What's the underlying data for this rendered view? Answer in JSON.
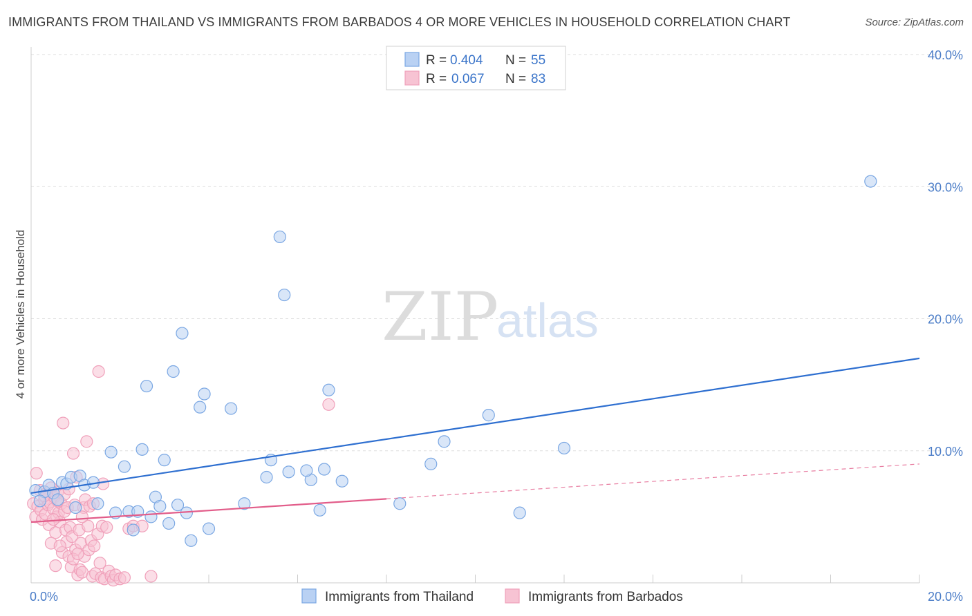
{
  "title": "IMMIGRANTS FROM THAILAND VS IMMIGRANTS FROM BARBADOS 4 OR MORE VEHICLES IN HOUSEHOLD CORRELATION CHART",
  "source": "Source: ZipAtlas.com",
  "watermark": {
    "part1": "ZIP",
    "part2": "atlas"
  },
  "chart_data": {
    "type": "scatter",
    "xlabel": "",
    "ylabel": "4 or more Vehicles in Household",
    "xlim": [
      0,
      20
    ],
    "ylim": [
      0,
      40
    ],
    "x_tick_labels": [
      {
        "value": 0,
        "label": "0.0%"
      },
      {
        "value": 20,
        "label": "20.0%"
      }
    ],
    "y_tick_labels": [
      {
        "value": 10,
        "label": "10.0%"
      },
      {
        "value": 20,
        "label": "20.0%"
      },
      {
        "value": 30,
        "label": "30.0%"
      },
      {
        "value": 40,
        "label": "40.0%"
      }
    ],
    "stats": [
      {
        "r_label": "R =",
        "r": "0.404",
        "n_label": "N =",
        "n": "55"
      },
      {
        "r_label": "R =",
        "r": "0.067",
        "n_label": "N =",
        "n": "83"
      }
    ],
    "series": [
      {
        "name": "Immigrants from Thailand",
        "color": "#7aa7e3",
        "fill": "#b9d1f3",
        "line_color": "#2e6fd0",
        "trend": {
          "x0": 0,
          "y0": 6.8,
          "x1": 20,
          "y1": 17.0,
          "dashed_from": null
        },
        "points": [
          [
            0.1,
            7.0
          ],
          [
            0.3,
            6.9
          ],
          [
            0.4,
            7.4
          ],
          [
            0.5,
            6.8
          ],
          [
            0.7,
            7.6
          ],
          [
            0.8,
            7.5
          ],
          [
            0.9,
            8.0
          ],
          [
            1.1,
            8.1
          ],
          [
            1.0,
            5.7
          ],
          [
            1.2,
            7.4
          ],
          [
            1.4,
            7.6
          ],
          [
            1.5,
            6.0
          ],
          [
            1.8,
            9.9
          ],
          [
            1.9,
            5.3
          ],
          [
            2.1,
            8.8
          ],
          [
            2.2,
            5.4
          ],
          [
            2.3,
            4.0
          ],
          [
            2.4,
            5.4
          ],
          [
            2.5,
            10.1
          ],
          [
            2.6,
            14.9
          ],
          [
            2.7,
            5.0
          ],
          [
            2.8,
            6.5
          ],
          [
            2.9,
            5.8
          ],
          [
            3.0,
            9.3
          ],
          [
            3.1,
            4.5
          ],
          [
            3.2,
            16.0
          ],
          [
            3.3,
            5.9
          ],
          [
            3.4,
            18.9
          ],
          [
            3.5,
            5.3
          ],
          [
            3.6,
            3.2
          ],
          [
            3.8,
            13.3
          ],
          [
            3.9,
            14.3
          ],
          [
            4.0,
            4.1
          ],
          [
            4.5,
            13.2
          ],
          [
            4.8,
            6.0
          ],
          [
            5.4,
            9.3
          ],
          [
            5.6,
            26.2
          ],
          [
            5.7,
            21.8
          ],
          [
            5.3,
            8.0
          ],
          [
            5.8,
            8.4
          ],
          [
            6.3,
            7.8
          ],
          [
            6.2,
            8.5
          ],
          [
            6.5,
            5.5
          ],
          [
            6.6,
            8.6
          ],
          [
            6.7,
            14.6
          ],
          [
            7.0,
            7.7
          ],
          [
            8.3,
            6.0
          ],
          [
            9.0,
            9.0
          ],
          [
            9.3,
            10.7
          ],
          [
            10.3,
            12.7
          ],
          [
            11.0,
            5.3
          ],
          [
            12.0,
            10.2
          ],
          [
            18.9,
            30.4
          ],
          [
            0.2,
            6.2
          ],
          [
            0.6,
            6.3
          ]
        ]
      },
      {
        "name": "Immigrants from Barbados",
        "color": "#f0a0ba",
        "fill": "#f7c3d3",
        "line_color": "#e25d8a",
        "trend": {
          "x0": 0,
          "y0": 4.6,
          "x1": 20,
          "y1": 9.0,
          "dashed_from": 8.0
        },
        "points": [
          [
            0.05,
            6.0
          ],
          [
            0.1,
            5.0
          ],
          [
            0.12,
            8.3
          ],
          [
            0.15,
            5.8
          ],
          [
            0.2,
            7.0
          ],
          [
            0.22,
            5.5
          ],
          [
            0.25,
            4.8
          ],
          [
            0.3,
            6.3
          ],
          [
            0.32,
            5.2
          ],
          [
            0.35,
            6.8
          ],
          [
            0.38,
            5.9
          ],
          [
            0.4,
            4.4
          ],
          [
            0.42,
            6.1
          ],
          [
            0.45,
            7.2
          ],
          [
            0.5,
            5.6
          ],
          [
            0.52,
            6.5
          ],
          [
            0.55,
            3.8
          ],
          [
            0.58,
            5.0
          ],
          [
            0.6,
            6.9
          ],
          [
            0.62,
            5.3
          ],
          [
            0.65,
            4.6
          ],
          [
            0.68,
            6.0
          ],
          [
            0.7,
            2.3
          ],
          [
            0.72,
            12.1
          ],
          [
            0.75,
            5.4
          ],
          [
            0.78,
            4.0
          ],
          [
            0.8,
            3.1
          ],
          [
            0.82,
            5.7
          ],
          [
            0.85,
            2.0
          ],
          [
            0.88,
            4.2
          ],
          [
            0.9,
            1.2
          ],
          [
            0.92,
            3.5
          ],
          [
            0.95,
            9.8
          ],
          [
            0.98,
            5.9
          ],
          [
            1.0,
            2.5
          ],
          [
            1.02,
            8.0
          ],
          [
            1.05,
            0.6
          ],
          [
            1.08,
            4.0
          ],
          [
            1.1,
            1.0
          ],
          [
            1.12,
            3.0
          ],
          [
            1.15,
            0.8
          ],
          [
            1.18,
            5.7
          ],
          [
            1.2,
            2.0
          ],
          [
            1.22,
            6.3
          ],
          [
            1.25,
            10.7
          ],
          [
            1.28,
            4.3
          ],
          [
            1.3,
            2.5
          ],
          [
            1.32,
            5.8
          ],
          [
            1.35,
            3.2
          ],
          [
            1.38,
            0.5
          ],
          [
            1.4,
            6.0
          ],
          [
            1.42,
            2.8
          ],
          [
            1.45,
            0.7
          ],
          [
            1.5,
            3.7
          ],
          [
            1.52,
            16.0
          ],
          [
            1.55,
            1.5
          ],
          [
            1.58,
            0.4
          ],
          [
            1.6,
            4.3
          ],
          [
            1.62,
            7.5
          ],
          [
            1.65,
            0.3
          ],
          [
            1.7,
            4.2
          ],
          [
            1.75,
            0.9
          ],
          [
            1.8,
            0.5
          ],
          [
            1.85,
            0.2
          ],
          [
            1.9,
            0.6
          ],
          [
            2.0,
            0.3
          ],
          [
            2.1,
            0.4
          ],
          [
            2.2,
            4.1
          ],
          [
            2.3,
            4.3
          ],
          [
            2.5,
            4.3
          ],
          [
            2.7,
            0.5
          ],
          [
            6.7,
            13.5
          ],
          [
            0.45,
            3.0
          ],
          [
            0.55,
            1.3
          ],
          [
            0.65,
            2.8
          ],
          [
            0.75,
            6.7
          ],
          [
            0.85,
            7.1
          ],
          [
            0.95,
            1.8
          ],
          [
            1.05,
            2.2
          ],
          [
            1.15,
            5.0
          ],
          [
            0.3,
            6.6
          ],
          [
            0.5,
            4.8
          ],
          [
            0.6,
            6.2
          ]
        ]
      }
    ]
  }
}
